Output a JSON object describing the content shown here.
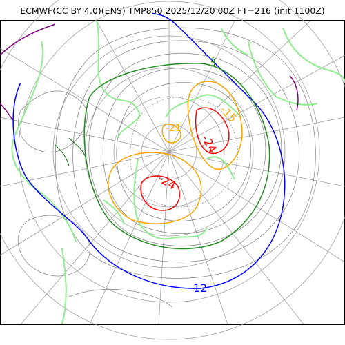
{
  "title": "ECMWF(CC BY 4.0)(ENS) TMP850 2025/12/20 00Z FT=216 (init 1100Z)",
  "contour_labels": [
    {
      "text": "3",
      "color": "#228b22"
    },
    {
      "text": "-15",
      "color": "#ffa500"
    },
    {
      "text": "-24",
      "color": "#ff0000"
    },
    {
      "text": "-21",
      "color": "#ffa500"
    },
    {
      "text": "-24",
      "color": "#ff0000"
    },
    {
      "text": "12",
      "color": "#0000ff"
    }
  ],
  "colors": {
    "coast": "#90ee90",
    "coast_dark": "#006400",
    "graticule": "#a0a0a0",
    "contour_thin": "#808080",
    "contour_3": "#228b22",
    "contour_12": "#0000ff",
    "contour_minus15": "#ffa500",
    "contour_minus24": "#ff0000",
    "contour_warm": "#800080"
  }
}
